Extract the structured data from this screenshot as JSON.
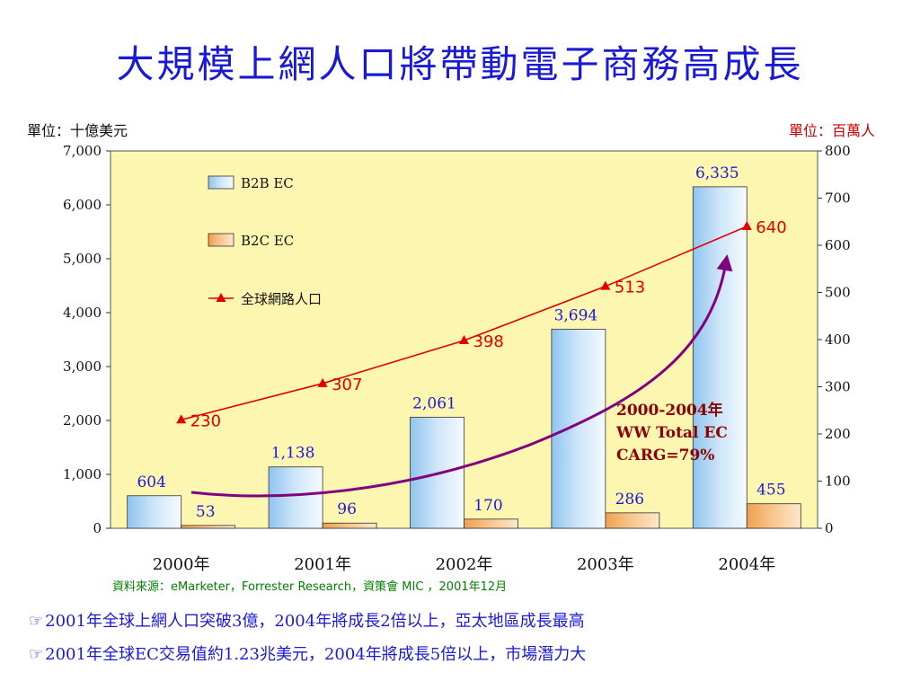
{
  "title": "大規模上網人口將帶動電子商務高成長",
  "unit_left": "單位：十億美元",
  "unit_right": "單位：百萬人",
  "source": "資料來源：eMarketer，Forrester Research，資策會 MIC ，2001年12月",
  "bullet_icon": "pointing-hand-icon",
  "bullet_glyph": "☞",
  "bullets": [
    "2001年全球上網人口突破3億，2004年將成長2倍以上，亞太地區成長最高",
    "2001年全球EC交易值約1.23兆美元，2004年將成長5倍以上，市場潛力大"
  ],
  "annotation_lines": [
    "2000-2004年",
    "WW Total EC",
    "CARG=79%"
  ],
  "colors": {
    "title": "#1a1ad6",
    "plot_bg": "#fdf6b0",
    "b2b": "#cfe6f8",
    "b2c": "#f8c890",
    "line": "#e00000",
    "trend_arrow": "#800080",
    "value_label": "#1a1ad6"
  },
  "chart_data": {
    "type": "bar+line",
    "categories": [
      "2000年",
      "2001年",
      "2002年",
      "2003年",
      "2004年"
    ],
    "series": [
      {
        "name": "B2B EC",
        "type": "bar",
        "axis": "left",
        "values": [
          604,
          1138,
          2061,
          3694,
          6335
        ],
        "labels": [
          "604",
          "1,138",
          "2,061",
          "3,694",
          "6,335"
        ]
      },
      {
        "name": "B2C EC",
        "type": "bar",
        "axis": "left",
        "values": [
          53,
          96,
          170,
          286,
          455
        ],
        "labels": [
          "53",
          "96",
          "170",
          "286",
          "455"
        ]
      },
      {
        "name": "全球網路人口",
        "type": "line",
        "axis": "right",
        "values": [
          230,
          307,
          398,
          513,
          640
        ],
        "labels": [
          "230",
          "307",
          "398",
          "513",
          "640"
        ]
      }
    ],
    "y_left": {
      "range": [
        0,
        7000
      ],
      "ticks": [
        0,
        1000,
        2000,
        3000,
        4000,
        5000,
        6000,
        7000
      ],
      "tick_labels": [
        "0",
        "1,000",
        "2,000",
        "3,000",
        "4,000",
        "5,000",
        "6,000",
        "7,000"
      ]
    },
    "y_right": {
      "range": [
        0,
        800
      ],
      "ticks": [
        0,
        100,
        200,
        300,
        400,
        500,
        600,
        700,
        800
      ],
      "tick_labels": [
        "0",
        "100",
        "200",
        "300",
        "400",
        "500",
        "600",
        "700",
        "800"
      ]
    },
    "legend_position": "top-left",
    "grid": false
  }
}
